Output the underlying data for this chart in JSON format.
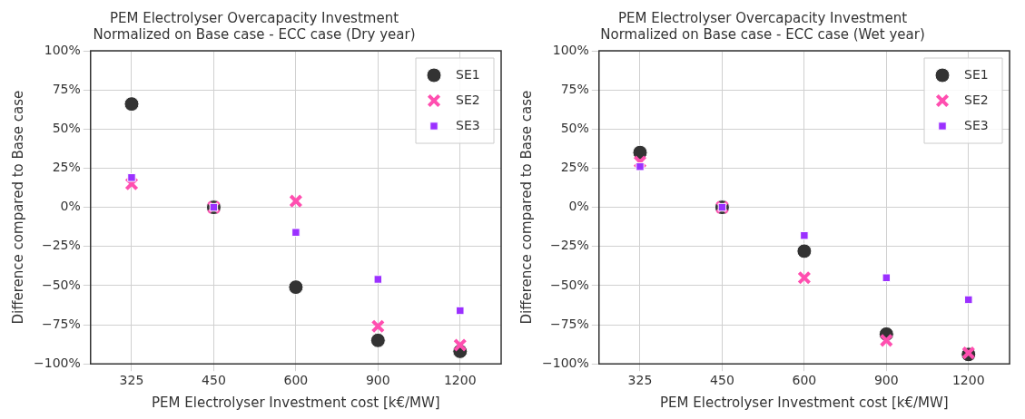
{
  "chart_data": [
    {
      "type": "scatter",
      "title": "PEM Electrolyser Overcapacity Investment",
      "subtitle": "Normalized on Base case - ECC case (Dry year)",
      "xlabel": "PEM Electrolyser Investment cost [k€/MW]",
      "ylabel": "Difference compared to Base case",
      "categories": [
        "325",
        "450",
        "600",
        "900",
        "1200"
      ],
      "ylim": [
        -100,
        100
      ],
      "yticks": [
        {
          "value": -100,
          "label": "−100%"
        },
        {
          "value": -75,
          "label": "−75%"
        },
        {
          "value": -50,
          "label": "−50%"
        },
        {
          "value": -25,
          "label": "−25%"
        },
        {
          "value": 0,
          "label": "0%"
        },
        {
          "value": 25,
          "label": "25%"
        },
        {
          "value": 50,
          "label": "50%"
        },
        {
          "value": 75,
          "label": "75%"
        },
        {
          "value": 100,
          "label": "100%"
        }
      ],
      "grid": true,
      "legend": "top right",
      "series": [
        {
          "name": "SE1",
          "color": "#333333",
          "marker": "circle",
          "values": [
            66,
            0,
            -51,
            -85,
            -92
          ]
        },
        {
          "name": "SE2",
          "color": "#ff4fb0",
          "marker": "cross",
          "values": [
            15,
            0,
            4,
            -76,
            -88
          ]
        },
        {
          "name": "SE3",
          "color": "#9b30ff",
          "marker": "square",
          "values": [
            19,
            0,
            -16,
            -46,
            -66
          ]
        }
      ]
    },
    {
      "type": "scatter",
      "title": "PEM Electrolyser Overcapacity Investment",
      "subtitle": "Normalized on Base case - ECC case (Wet year)",
      "xlabel": "PEM Electrolyser Investment cost [k€/MW]",
      "ylabel": "Difference compared to Base case",
      "categories": [
        "325",
        "450",
        "600",
        "900",
        "1200"
      ],
      "ylim": [
        -100,
        100
      ],
      "yticks": [
        {
          "value": -100,
          "label": "−100%"
        },
        {
          "value": -75,
          "label": "−75%"
        },
        {
          "value": -50,
          "label": "−50%"
        },
        {
          "value": -25,
          "label": "−25%"
        },
        {
          "value": 0,
          "label": "0%"
        },
        {
          "value": 25,
          "label": "25%"
        },
        {
          "value": 50,
          "label": "50%"
        },
        {
          "value": 75,
          "label": "75%"
        },
        {
          "value": 100,
          "label": "100%"
        }
      ],
      "grid": true,
      "legend": "top right",
      "series": [
        {
          "name": "SE1",
          "color": "#333333",
          "marker": "circle",
          "values": [
            35,
            0,
            -28,
            -81,
            -94
          ]
        },
        {
          "name": "SE2",
          "color": "#ff4fb0",
          "marker": "cross",
          "values": [
            29,
            0,
            -45,
            -85,
            -93
          ]
        },
        {
          "name": "SE3",
          "color": "#9b30ff",
          "marker": "square",
          "values": [
            26,
            0,
            -18,
            -45,
            -59
          ]
        }
      ]
    }
  ]
}
